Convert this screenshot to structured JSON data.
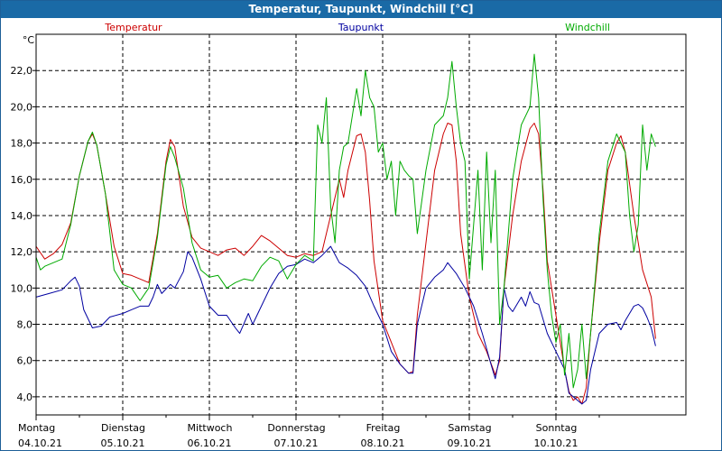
{
  "window": {
    "title": "Temperatur, Taupunkt, Windchill [°C]"
  },
  "colors": {
    "temperature": "#cc0000",
    "dewpoint": "#0000a0",
    "windchill": "#00aa00",
    "titlebar": "#1a6aa6",
    "grid": "#000000",
    "axis": "#000000"
  },
  "chart_data": {
    "type": "line",
    "title": "Temperatur, Taupunkt, Windchill [°C]",
    "ylabel": "°C",
    "xlabel": "",
    "ylim": [
      3,
      24
    ],
    "xlim": [
      0,
      7.5
    ],
    "yticks": [
      4,
      6,
      8,
      10,
      12,
      14,
      16,
      18,
      20,
      22
    ],
    "ytick_labels": [
      "4,0",
      "6,0",
      "8,0",
      "10,0",
      "12,0",
      "14,0",
      "16,0",
      "18,0",
      "20,0",
      "22,0"
    ],
    "x_day_labels": [
      {
        "day": "Montag",
        "date": "04.10.21",
        "x": 0
      },
      {
        "day": "Dienstag",
        "date": "05.10.21",
        "x": 1
      },
      {
        "day": "Mittwoch",
        "date": "06.10.21",
        "x": 2
      },
      {
        "day": "Donnerstag",
        "date": "07.10.21",
        "x": 3
      },
      {
        "day": "Freitag",
        "date": "08.10.21",
        "x": 4
      },
      {
        "day": "Samstag",
        "date": "09.10.21",
        "x": 5
      },
      {
        "day": "Sonntag",
        "date": "10.10.21",
        "x": 6
      }
    ],
    "grid": true,
    "legend": "top",
    "series": [
      {
        "name": "Temperatur",
        "color": "#cc0000",
        "points": [
          [
            0.0,
            12.3
          ],
          [
            0.1,
            11.6
          ],
          [
            0.2,
            11.9
          ],
          [
            0.3,
            12.4
          ],
          [
            0.4,
            13.6
          ],
          [
            0.5,
            16.2
          ],
          [
            0.6,
            18.1
          ],
          [
            0.65,
            18.5
          ],
          [
            0.7,
            17.9
          ],
          [
            0.8,
            15.2
          ],
          [
            0.9,
            12.3
          ],
          [
            1.0,
            10.8
          ],
          [
            1.1,
            10.7
          ],
          [
            1.2,
            10.5
          ],
          [
            1.3,
            10.3
          ],
          [
            1.4,
            13.0
          ],
          [
            1.5,
            17.0
          ],
          [
            1.55,
            18.2
          ],
          [
            1.6,
            17.8
          ],
          [
            1.7,
            14.5
          ],
          [
            1.8,
            12.8
          ],
          [
            1.9,
            12.2
          ],
          [
            2.0,
            12.0
          ],
          [
            2.1,
            11.8
          ],
          [
            2.2,
            12.1
          ],
          [
            2.3,
            12.2
          ],
          [
            2.4,
            11.8
          ],
          [
            2.5,
            12.3
          ],
          [
            2.6,
            12.9
          ],
          [
            2.7,
            12.6
          ],
          [
            2.8,
            12.2
          ],
          [
            2.9,
            11.8
          ],
          [
            3.0,
            11.7
          ],
          [
            3.1,
            11.9
          ],
          [
            3.2,
            11.8
          ],
          [
            3.3,
            12.0
          ],
          [
            3.4,
            14.0
          ],
          [
            3.5,
            16.0
          ],
          [
            3.55,
            15.0
          ],
          [
            3.6,
            16.5
          ],
          [
            3.7,
            18.4
          ],
          [
            3.75,
            18.5
          ],
          [
            3.8,
            17.5
          ],
          [
            3.85,
            14.8
          ],
          [
            3.9,
            11.5
          ],
          [
            4.0,
            8.2
          ],
          [
            4.1,
            7.0
          ],
          [
            4.2,
            5.8
          ],
          [
            4.3,
            5.3
          ],
          [
            4.35,
            5.4
          ],
          [
            4.4,
            8.5
          ],
          [
            4.5,
            12.5
          ],
          [
            4.6,
            16.5
          ],
          [
            4.7,
            18.5
          ],
          [
            4.75,
            19.1
          ],
          [
            4.8,
            19.0
          ],
          [
            4.85,
            17.0
          ],
          [
            4.9,
            13.0
          ],
          [
            5.0,
            9.5
          ],
          [
            5.1,
            7.5
          ],
          [
            5.2,
            6.5
          ],
          [
            5.3,
            5.2
          ],
          [
            5.35,
            6.0
          ],
          [
            5.4,
            10.0
          ],
          [
            5.5,
            14.0
          ],
          [
            5.6,
            17.0
          ],
          [
            5.7,
            18.8
          ],
          [
            5.75,
            19.1
          ],
          [
            5.8,
            18.5
          ],
          [
            5.85,
            15.5
          ],
          [
            5.9,
            11.5
          ],
          [
            6.0,
            8.5
          ],
          [
            6.05,
            7.0
          ],
          [
            6.1,
            5.5
          ],
          [
            6.15,
            4.3
          ],
          [
            6.2,
            3.8
          ],
          [
            6.25,
            4.0
          ],
          [
            6.3,
            3.6
          ],
          [
            6.35,
            4.5
          ],
          [
            6.4,
            7.5
          ],
          [
            6.5,
            12.5
          ],
          [
            6.6,
            16.5
          ],
          [
            6.7,
            18.0
          ],
          [
            6.75,
            18.4
          ],
          [
            6.8,
            17.5
          ],
          [
            6.9,
            14.0
          ],
          [
            7.0,
            11.0
          ],
          [
            7.1,
            9.5
          ],
          [
            7.15,
            7.2
          ]
        ]
      },
      {
        "name": "Taupunkt",
        "color": "#0000a0",
        "points": [
          [
            0.0,
            9.5
          ],
          [
            0.15,
            9.7
          ],
          [
            0.3,
            9.9
          ],
          [
            0.4,
            10.4
          ],
          [
            0.45,
            10.6
          ],
          [
            0.5,
            10.1
          ],
          [
            0.55,
            8.8
          ],
          [
            0.65,
            7.8
          ],
          [
            0.75,
            7.9
          ],
          [
            0.85,
            8.4
          ],
          [
            1.0,
            8.6
          ],
          [
            1.1,
            8.8
          ],
          [
            1.2,
            9.0
          ],
          [
            1.3,
            9.0
          ],
          [
            1.35,
            9.5
          ],
          [
            1.4,
            10.2
          ],
          [
            1.45,
            9.7
          ],
          [
            1.55,
            10.2
          ],
          [
            1.6,
            10.0
          ],
          [
            1.7,
            10.9
          ],
          [
            1.75,
            12.0
          ],
          [
            1.8,
            11.7
          ],
          [
            1.9,
            10.5
          ],
          [
            2.0,
            9.0
          ],
          [
            2.1,
            8.5
          ],
          [
            2.2,
            8.5
          ],
          [
            2.3,
            7.8
          ],
          [
            2.35,
            7.5
          ],
          [
            2.45,
            8.6
          ],
          [
            2.5,
            8.0
          ],
          [
            2.6,
            9.0
          ],
          [
            2.7,
            10.0
          ],
          [
            2.8,
            10.8
          ],
          [
            2.9,
            11.2
          ],
          [
            3.0,
            11.3
          ],
          [
            3.1,
            11.6
          ],
          [
            3.2,
            11.4
          ],
          [
            3.3,
            11.8
          ],
          [
            3.4,
            12.3
          ],
          [
            3.5,
            11.4
          ],
          [
            3.6,
            11.1
          ],
          [
            3.7,
            10.7
          ],
          [
            3.8,
            10.1
          ],
          [
            3.9,
            9.0
          ],
          [
            4.0,
            8.0
          ],
          [
            4.1,
            6.5
          ],
          [
            4.2,
            5.8
          ],
          [
            4.3,
            5.3
          ],
          [
            4.35,
            5.3
          ],
          [
            4.4,
            8.0
          ],
          [
            4.5,
            10.0
          ],
          [
            4.6,
            10.6
          ],
          [
            4.7,
            11.0
          ],
          [
            4.75,
            11.4
          ],
          [
            4.85,
            10.8
          ],
          [
            4.95,
            10.0
          ],
          [
            5.05,
            9.0
          ],
          [
            5.15,
            7.5
          ],
          [
            5.25,
            5.8
          ],
          [
            5.3,
            5.0
          ],
          [
            5.35,
            6.2
          ],
          [
            5.4,
            10.0
          ],
          [
            5.45,
            9.0
          ],
          [
            5.5,
            8.7
          ],
          [
            5.6,
            9.5
          ],
          [
            5.65,
            9.0
          ],
          [
            5.7,
            9.8
          ],
          [
            5.75,
            9.2
          ],
          [
            5.8,
            9.1
          ],
          [
            5.9,
            7.5
          ],
          [
            6.0,
            6.5
          ],
          [
            6.1,
            5.5
          ],
          [
            6.15,
            4.2
          ],
          [
            6.2,
            4.0
          ],
          [
            6.3,
            3.6
          ],
          [
            6.35,
            3.8
          ],
          [
            6.4,
            5.5
          ],
          [
            6.5,
            7.5
          ],
          [
            6.6,
            8.0
          ],
          [
            6.7,
            8.1
          ],
          [
            6.75,
            7.7
          ],
          [
            6.8,
            8.2
          ],
          [
            6.9,
            9.0
          ],
          [
            6.95,
            9.1
          ],
          [
            7.0,
            8.9
          ],
          [
            7.05,
            8.4
          ],
          [
            7.1,
            7.8
          ],
          [
            7.15,
            6.8
          ]
        ]
      },
      {
        "name": "Windchill",
        "color": "#00aa00",
        "points": [
          [
            0.0,
            11.7
          ],
          [
            0.05,
            11.0
          ],
          [
            0.1,
            11.2
          ],
          [
            0.2,
            11.4
          ],
          [
            0.3,
            11.6
          ],
          [
            0.4,
            13.5
          ],
          [
            0.5,
            16.2
          ],
          [
            0.6,
            18.1
          ],
          [
            0.65,
            18.6
          ],
          [
            0.7,
            17.9
          ],
          [
            0.8,
            15.2
          ],
          [
            0.9,
            11.0
          ],
          [
            1.0,
            10.2
          ],
          [
            1.1,
            10.0
          ],
          [
            1.2,
            9.3
          ],
          [
            1.3,
            10.0
          ],
          [
            1.4,
            12.8
          ],
          [
            1.5,
            16.8
          ],
          [
            1.55,
            17.8
          ],
          [
            1.6,
            17.2
          ],
          [
            1.7,
            15.5
          ],
          [
            1.8,
            12.5
          ],
          [
            1.9,
            11.0
          ],
          [
            2.0,
            10.6
          ],
          [
            2.1,
            10.7
          ],
          [
            2.2,
            10.0
          ],
          [
            2.3,
            10.3
          ],
          [
            2.4,
            10.5
          ],
          [
            2.5,
            10.4
          ],
          [
            2.6,
            11.2
          ],
          [
            2.7,
            11.7
          ],
          [
            2.8,
            11.5
          ],
          [
            2.9,
            10.5
          ],
          [
            3.0,
            11.3
          ],
          [
            3.1,
            11.8
          ],
          [
            3.2,
            11.5
          ],
          [
            3.25,
            19.0
          ],
          [
            3.3,
            18.0
          ],
          [
            3.35,
            20.5
          ],
          [
            3.4,
            14.5
          ],
          [
            3.45,
            12.5
          ],
          [
            3.5,
            16.5
          ],
          [
            3.55,
            17.8
          ],
          [
            3.6,
            18.0
          ],
          [
            3.65,
            19.5
          ],
          [
            3.7,
            21.0
          ],
          [
            3.75,
            19.5
          ],
          [
            3.8,
            22.0
          ],
          [
            3.85,
            20.5
          ],
          [
            3.9,
            20.0
          ],
          [
            3.95,
            17.5
          ],
          [
            4.0,
            18.0
          ],
          [
            4.05,
            16.0
          ],
          [
            4.1,
            17.0
          ],
          [
            4.15,
            14.0
          ],
          [
            4.2,
            17.0
          ],
          [
            4.25,
            16.5
          ],
          [
            4.3,
            16.2
          ],
          [
            4.35,
            16.0
          ],
          [
            4.4,
            13.0
          ],
          [
            4.5,
            16.5
          ],
          [
            4.6,
            19.0
          ],
          [
            4.7,
            19.5
          ],
          [
            4.75,
            20.5
          ],
          [
            4.8,
            22.5
          ],
          [
            4.85,
            20.0
          ],
          [
            4.9,
            18.0
          ],
          [
            4.95,
            17.0
          ],
          [
            5.0,
            10.5
          ],
          [
            5.05,
            13.5
          ],
          [
            5.1,
            16.5
          ],
          [
            5.15,
            11.0
          ],
          [
            5.2,
            17.5
          ],
          [
            5.25,
            12.5
          ],
          [
            5.3,
            16.5
          ],
          [
            5.35,
            8.0
          ],
          [
            5.4,
            10.0
          ],
          [
            5.45,
            13.0
          ],
          [
            5.5,
            16.0
          ],
          [
            5.6,
            19.0
          ],
          [
            5.7,
            20.0
          ],
          [
            5.75,
            22.9
          ],
          [
            5.8,
            20.5
          ],
          [
            5.85,
            15.0
          ],
          [
            5.9,
            11.0
          ],
          [
            5.95,
            8.5
          ],
          [
            6.0,
            7.0
          ],
          [
            6.05,
            8.0
          ],
          [
            6.1,
            5.2
          ],
          [
            6.15,
            7.5
          ],
          [
            6.2,
            4.5
          ],
          [
            6.25,
            5.5
          ],
          [
            6.3,
            8.0
          ],
          [
            6.35,
            5.0
          ],
          [
            6.4,
            7.5
          ],
          [
            6.5,
            13.0
          ],
          [
            6.6,
            17.0
          ],
          [
            6.7,
            18.5
          ],
          [
            6.8,
            17.5
          ],
          [
            6.85,
            14.0
          ],
          [
            6.9,
            12.0
          ],
          [
            6.95,
            13.5
          ],
          [
            7.0,
            19.0
          ],
          [
            7.05,
            16.5
          ],
          [
            7.1,
            18.5
          ],
          [
            7.15,
            17.8
          ]
        ]
      }
    ]
  }
}
